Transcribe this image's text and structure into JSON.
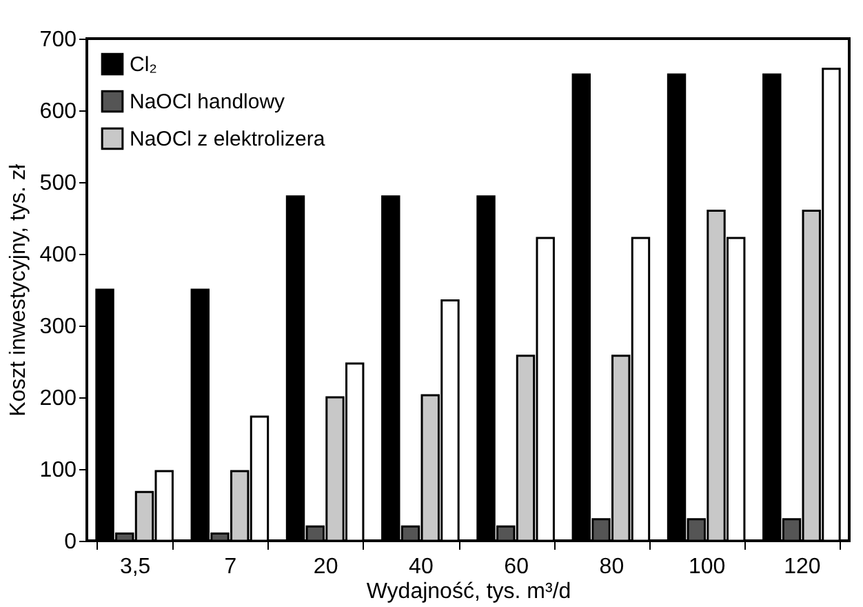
{
  "chart_data": {
    "type": "bar",
    "xlabel": "Wydajność, tys. m³/d",
    "ylabel": "Koszt inwestycyjny, tys. zł",
    "categories": [
      "3,5",
      "7",
      "20",
      "40",
      "60",
      "80",
      "100",
      "120"
    ],
    "series": [
      {
        "name": "Cl₂",
        "color": "#000000",
        "values": [
          350,
          350,
          480,
          480,
          480,
          650,
          650,
          650
        ]
      },
      {
        "name": "NaOCl handlowy",
        "color": "#555555",
        "values": [
          10,
          10,
          20,
          20,
          20,
          30,
          30,
          30
        ]
      },
      {
        "name": "NaOCl z elektrolizera",
        "color": "#c8c8c8",
        "values": [
          68,
          97,
          200,
          203,
          258,
          258,
          460,
          460
        ]
      },
      {
        "color": "#ffffff",
        "values": [
          97,
          173,
          247,
          335,
          422,
          422,
          422,
          658
        ]
      }
    ],
    "ylim": [
      0,
      700
    ],
    "yticks": [
      0,
      100,
      200,
      300,
      400,
      500,
      600,
      700
    ],
    "grid": false,
    "legend": "top left"
  }
}
